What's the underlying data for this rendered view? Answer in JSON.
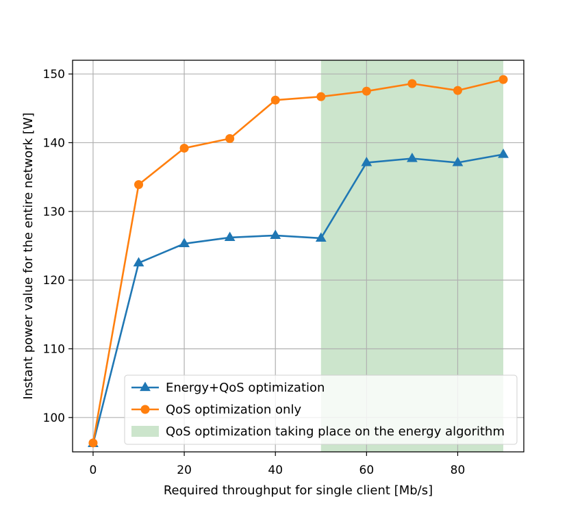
{
  "chart_data": {
    "type": "line",
    "title": "",
    "xlabel": "Required throughput for single client [Mb/s]",
    "ylabel": "Instant power value for the entire network [W]",
    "xlim": [
      -4.5,
      94.5
    ],
    "ylim": [
      95,
      152
    ],
    "xticks": [
      0,
      20,
      40,
      60,
      80
    ],
    "yticks": [
      100,
      110,
      120,
      130,
      140,
      150
    ],
    "grid": true,
    "x": [
      0,
      10,
      20,
      30,
      40,
      50,
      60,
      70,
      80,
      90
    ],
    "series": [
      {
        "name": "Energy+QoS optimization",
        "marker": "triangle",
        "color": "#1f77b4",
        "values": [
          96.2,
          122.5,
          125.3,
          126.2,
          126.5,
          126.1,
          137.1,
          137.7,
          137.1,
          138.3
        ]
      },
      {
        "name": "QoS optimization only",
        "marker": "circle",
        "color": "#ff7f0e",
        "values": [
          96.3,
          133.9,
          139.2,
          140.6,
          146.2,
          146.7,
          147.5,
          148.6,
          147.6,
          149.2
        ]
      }
    ],
    "shaded_region": {
      "name": "QoS optimization taking place on the energy algorithm",
      "x_start": 50,
      "x_end": 90,
      "color": "#cce5cc"
    },
    "legend_position": "lower-right"
  }
}
